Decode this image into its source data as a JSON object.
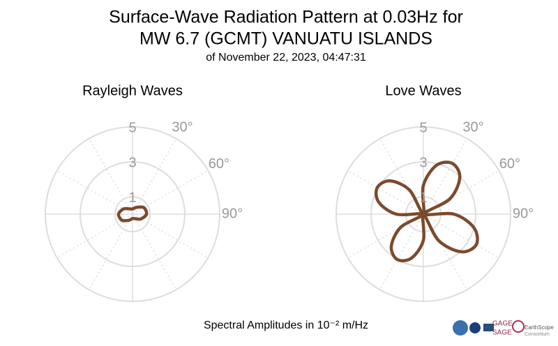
{
  "header": {
    "title": [
      "Surface-Wave Radiation Pattern at 0.03Hz for",
      "MW 6.7 (GCMT) VANUATU ISLANDS"
    ],
    "subtitle": "of November 22, 2023, 04:47:31",
    "footer": "Spectral Amplitudes in 10⁻² m/Hz",
    "logos": [
      "GAGE",
      "SAGE",
      "EarthScope",
      "Consortium"
    ]
  },
  "chart_data": [
    {
      "type": "polar",
      "title": "Rayleigh Waves",
      "theta": [
        0,
        30,
        60,
        90,
        120,
        150,
        180,
        210,
        240,
        270,
        300,
        330
      ],
      "series": [
        {
          "color": "#7b4a2c",
          "values": [
            0.3,
            0.45,
            0.75,
            0.8,
            0.55,
            0.3,
            0.25,
            0.4,
            0.7,
            0.8,
            0.6,
            0.35
          ]
        }
      ],
      "ylim": [
        0,
        5
      ],
      "yticks": [
        1,
        3,
        5
      ],
      "thetaticks": [
        {
          "value": 30,
          "label": "30°"
        },
        {
          "value": 60,
          "label": "60°"
        },
        {
          "value": 90,
          "label": "90°"
        }
      ],
      "grid": true
    },
    {
      "type": "polar",
      "title": "Love Waves",
      "theta": [
        0,
        15,
        30,
        45,
        60,
        75,
        90,
        105,
        120,
        135,
        150,
        165,
        180,
        195,
        210,
        225,
        240,
        255,
        270,
        285,
        300,
        315,
        330,
        345
      ],
      "series": [
        {
          "color": "#7b4a2c",
          "values": [
            1.65,
            2.9,
            3.35,
            2.95,
            1.75,
            0.05,
            1.75,
            3.0,
            3.5,
            3.05,
            1.75,
            0.05,
            1.5,
            2.6,
            3.0,
            2.6,
            1.5,
            0.05,
            1.55,
            2.65,
            3.05,
            2.7,
            1.6,
            0.05
          ]
        }
      ],
      "ylim": [
        0,
        5
      ],
      "yticks": [
        1,
        3,
        5
      ],
      "thetaticks": [
        {
          "value": 30,
          "label": "30°"
        },
        {
          "value": 60,
          "label": "60°"
        },
        {
          "value": 90,
          "label": "90°"
        }
      ],
      "grid": true
    }
  ]
}
